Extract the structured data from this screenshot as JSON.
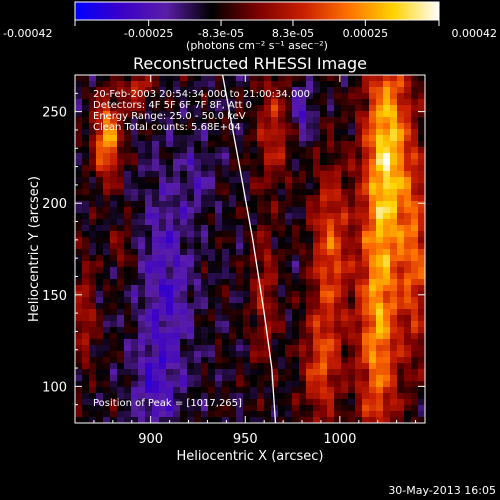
{
  "chart_data": {
    "type": "heatmap",
    "title": "Reconstructed RHESSI Image",
    "xlabel": "Heliocentric X (arcsec)",
    "ylabel": "Heliocentric Y (arcsec)",
    "xlim": [
      860,
      1045
    ],
    "ylim": [
      80,
      270
    ],
    "x_ticks": [
      900,
      950,
      1000
    ],
    "y_ticks": [
      100,
      150,
      200,
      250
    ],
    "colorbar": {
      "range": [
        -0.00042,
        0.00042
      ],
      "tick_values": [
        -0.00042,
        -0.00025,
        -8.3e-05,
        8.3e-05,
        0.00025,
        0.00042
      ],
      "tick_labels": [
        "-0.00042",
        "-0.00025",
        "-8.3e-05",
        "8.3e-05",
        "0.00025",
        "0.00042"
      ],
      "unit_label": "(photons cm⁻² s⁻¹ asec⁻²)",
      "colors": [
        "#0000ff",
        "#3a00c8",
        "#5a1ea8",
        "#000000",
        "#7a0000",
        "#c81e00",
        "#ff7000",
        "#ffd200",
        "#ffffff"
      ]
    },
    "annotations": [
      "20-Feb-2003 20:54:34.000 to 21:00:34.000",
      "Detectors: 4F 5F 6F 7F 8F, Att 0",
      "Energy Range: 25.0 - 50.0 keV",
      "Clean     Total counts: 5.68E+04"
    ],
    "peak_label": "Position of Peak = [1017,265]",
    "peak": [
      1017,
      265
    ],
    "limb_curve": [
      [
        938,
        270
      ],
      [
        947,
        220
      ],
      [
        954,
        180
      ],
      [
        960,
        140
      ],
      [
        964,
        110
      ],
      [
        966,
        80
      ]
    ],
    "grid": false
  },
  "footer": {
    "timestamp": "30-May-2013 16:05"
  }
}
